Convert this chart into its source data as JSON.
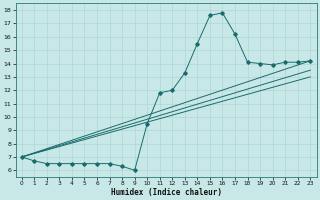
{
  "xlabel": "Humidex (Indice chaleur)",
  "bg_color": "#c8e8e8",
  "grid_color": "#b0d4d4",
  "line_color": "#1a6b6b",
  "xlim": [
    -0.5,
    23.5
  ],
  "ylim": [
    5.5,
    18.5
  ],
  "xticks": [
    0,
    1,
    2,
    3,
    4,
    5,
    6,
    7,
    8,
    9,
    10,
    11,
    12,
    13,
    14,
    15,
    16,
    17,
    18,
    19,
    20,
    21,
    22,
    23
  ],
  "yticks": [
    6,
    7,
    8,
    9,
    10,
    11,
    12,
    13,
    14,
    15,
    16,
    17,
    18
  ],
  "main_line": {
    "x": [
      0,
      1,
      2,
      3,
      4,
      5,
      6,
      7,
      8,
      9,
      10,
      11,
      12,
      13,
      14,
      15,
      16,
      17,
      18,
      19,
      20,
      21,
      22,
      23
    ],
    "y": [
      7.0,
      6.7,
      6.5,
      6.5,
      6.5,
      6.5,
      6.5,
      6.5,
      6.3,
      6.0,
      9.5,
      11.8,
      12.0,
      13.3,
      15.5,
      17.6,
      17.8,
      16.2,
      14.1,
      14.0,
      13.9,
      14.1,
      14.1,
      14.2
    ]
  },
  "trend_lines": [
    {
      "x": [
        0,
        23
      ],
      "y": [
        7.0,
        14.2
      ]
    },
    {
      "x": [
        0,
        23
      ],
      "y": [
        7.0,
        13.5
      ]
    },
    {
      "x": [
        0,
        23
      ],
      "y": [
        7.0,
        13.0
      ]
    }
  ]
}
